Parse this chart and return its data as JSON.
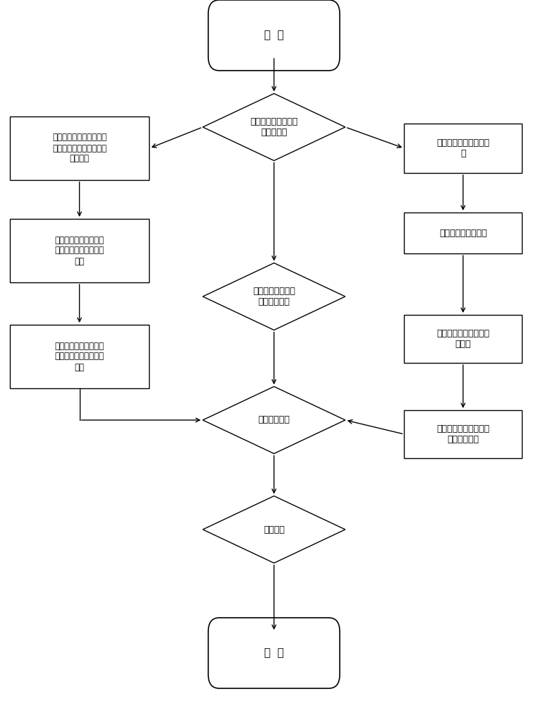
{
  "bg_color": "#ffffff",
  "node_edge_color": "#000000",
  "node_fill_color": "#ffffff",
  "arrow_color": "#000000",
  "start_text": "开  始",
  "end_text": "结  束",
  "diamond1_text": "测量探测波长的线宽\n和中心波长",
  "left1_text": "提取水汽谱线线强，并修\n正获取不同高度水汽标准\n吸收截面",
  "right1_text": "建立米散射激光雷达方\n程",
  "diamond2_text": "建立水汽差分吸收\n激光雷达方程",
  "left2_text": "计算探测光在不同高度\n水汽吸收截面和非吸收\n截面",
  "right2_text": "盲区修正与距离修正",
  "left3_text": "计算探测光在不同高度\n水汽吸收截面和非吸收\n截面",
  "right3_text": "确定激光雷达反演需要\n的参数",
  "diamond3_text": "反演水汽廓线",
  "right4_text": "反演气溶胶消光系数和\n后向散射系数",
  "diamond4_text": "标定数据"
}
